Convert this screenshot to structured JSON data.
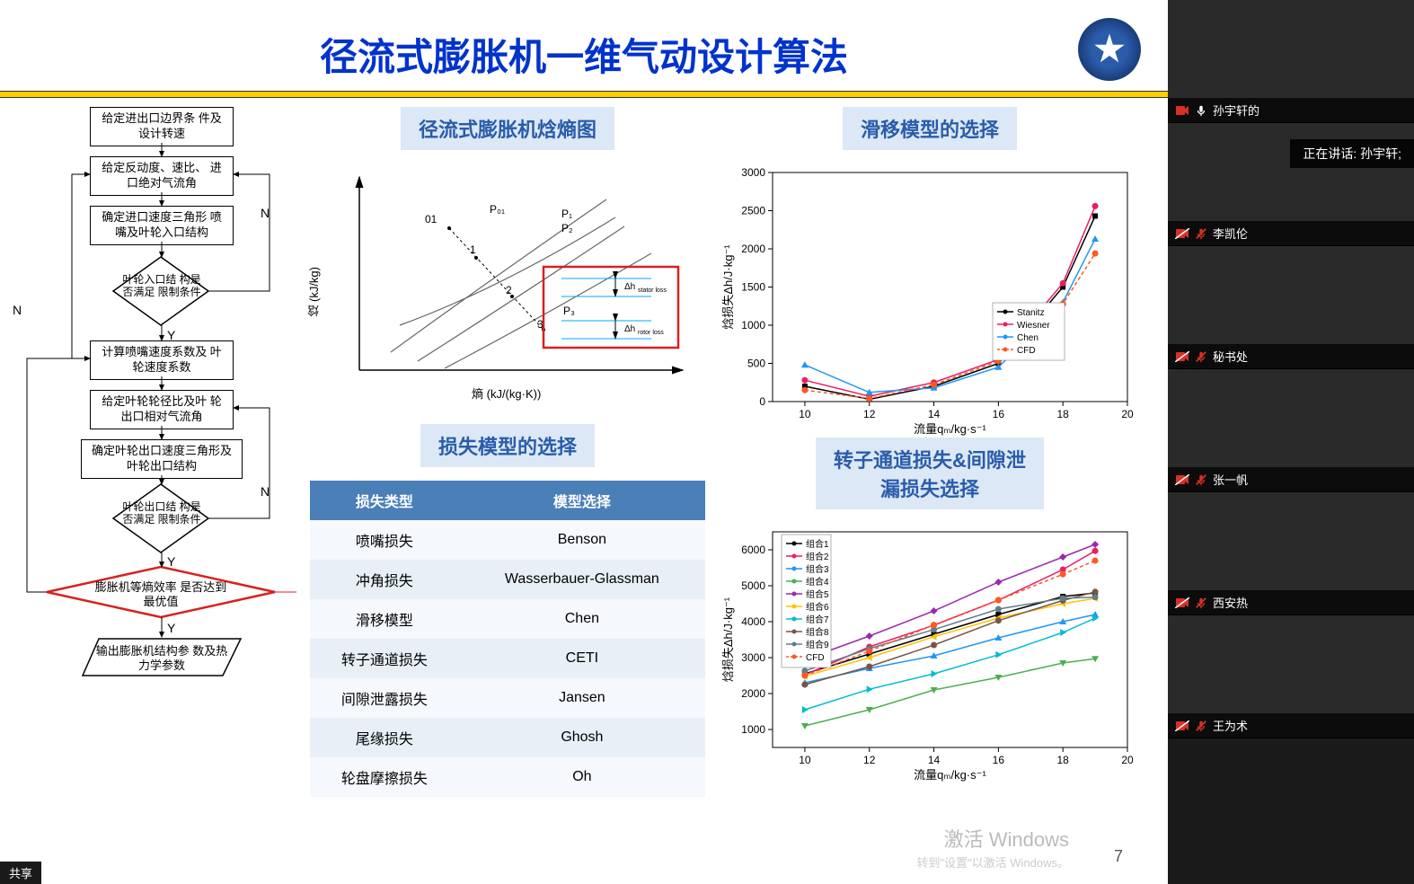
{
  "slide": {
    "title": "径流式膨胀机一维气动设计算法",
    "page_number": "7",
    "title_color": "#0033cc",
    "accent_bar_color": "#ffcc00"
  },
  "flowchart": {
    "box1": "给定进出口边界条\n件及设计转速",
    "box2": "给定反动度、速比、\n进口绝对气流角",
    "box3": "确定进口速度三角形\n喷嘴及叶轮入口结构",
    "diamond1": "叶轮入口结\n构是否满足\n限制条件",
    "box4": "计算喷嘴速度系数及\n叶轮速度系数",
    "box5": "给定叶轮轮径比及叶\n轮出口相对气流角",
    "box6": "确定叶轮出口速度三角形及\n叶轮出口结构",
    "diamond2": "叶轮出口结\n构是否满足\n限制条件",
    "diamond3": "膨胀机等熵效率\n是否达到最优值",
    "para_out": "输出膨胀机结构参\n数及热力学参数",
    "label_y1": "Y",
    "label_n1": "N",
    "label_y2": "Y",
    "label_n2": "N",
    "label_y3": "Y",
    "label_n_left": "N"
  },
  "hs_diagram": {
    "title": "径流式膨胀机焓熵图",
    "ylabel": "焓 (kJ/kg)",
    "xlabel": "熵 (kJ/(kg·K))",
    "p_labels": {
      "p01": "01",
      "P01": "P₀₁",
      "P1": "P₁",
      "P2": "P₂",
      "P3": "P₃",
      "n1": "1",
      "n2": "2",
      "n3": "3"
    },
    "dh_stator": "Δh_stator loss",
    "dh_rotor": "Δh_rotor loss",
    "red_box_color": "#d82020"
  },
  "loss_table": {
    "title": "损失模型的选择",
    "header_loss": "损失类型",
    "header_model": "模型选择",
    "header_bg": "#4a7fb8",
    "row_bg_even": "#e8eff7",
    "row_bg_odd": "#f5f8fc",
    "rows": [
      {
        "loss": "喷嘴损失",
        "model": "Benson"
      },
      {
        "loss": "冲角损失",
        "model": "Wasserbauer-Glassman"
      },
      {
        "loss": "滑移模型",
        "model": "Chen"
      },
      {
        "loss": "转子通道损失",
        "model": "CETI"
      },
      {
        "loss": "间隙泄露损失",
        "model": "Jansen"
      },
      {
        "loss": "尾缘损失",
        "model": "Ghosh"
      },
      {
        "loss": "轮盘摩擦损失",
        "model": "Oh"
      }
    ]
  },
  "chart1": {
    "title": "滑移模型的选择",
    "ylabel": "焓损失Δh/J·kg⁻¹",
    "xlabel": "流量qₘ/kg·s⁻¹",
    "xlim": [
      9,
      20
    ],
    "ylim": [
      0,
      3000
    ],
    "xticks": [
      10,
      12,
      14,
      16,
      18,
      20
    ],
    "yticks": [
      0,
      500,
      1000,
      1500,
      2000,
      2500,
      3000
    ],
    "grid_color": "#e0e0e0",
    "series": [
      {
        "name": "Stanitz",
        "color": "#000000",
        "marker": "square",
        "x": [
          10,
          12,
          14,
          16,
          18,
          19
        ],
        "y": [
          200,
          30,
          200,
          500,
          1500,
          2430
        ]
      },
      {
        "name": "Wiesner",
        "color": "#e91e63",
        "marker": "circle",
        "x": [
          10,
          12,
          14,
          16,
          18,
          19
        ],
        "y": [
          280,
          70,
          250,
          550,
          1550,
          2560
        ]
      },
      {
        "name": "Chen",
        "color": "#2196f3",
        "marker": "triangle",
        "x": [
          10,
          12,
          14,
          16,
          18,
          19
        ],
        "y": [
          480,
          120,
          180,
          450,
          1300,
          2130
        ]
      },
      {
        "name": "CFD",
        "color": "#ff5722",
        "marker": "circle",
        "dash": true,
        "x": [
          10,
          12,
          14,
          16,
          18,
          19
        ],
        "y": [
          150,
          40,
          220,
          530,
          1280,
          1940
        ]
      }
    ]
  },
  "chart2": {
    "title": "转子通道损失&间隙泄\n漏损失选择",
    "ylabel": "焓损失Δh/J·kg⁻¹",
    "xlabel": "流量qₘ/kg·s⁻¹",
    "xlim": [
      9,
      20
    ],
    "ylim": [
      500,
      6500
    ],
    "xticks": [
      10,
      12,
      14,
      16,
      18,
      20
    ],
    "yticks": [
      1000,
      2000,
      3000,
      4000,
      5000,
      6000
    ],
    "grid_color": "#e0e0e0",
    "series": [
      {
        "name": "组合1",
        "color": "#000000",
        "marker": "square",
        "x": [
          10,
          12,
          14,
          16,
          18,
          19
        ],
        "y": [
          2550,
          3100,
          3650,
          4200,
          4700,
          4800
        ]
      },
      {
        "name": "组合2",
        "color": "#e91e63",
        "marker": "circle",
        "x": [
          10,
          12,
          14,
          16,
          18,
          19
        ],
        "y": [
          2520,
          3300,
          3900,
          4600,
          5450,
          5970
        ]
      },
      {
        "name": "组合3",
        "color": "#2196f3",
        "marker": "triangle",
        "x": [
          10,
          12,
          14,
          16,
          18,
          19
        ],
        "y": [
          2300,
          2700,
          3050,
          3550,
          4000,
          4200
        ]
      },
      {
        "name": "组合4",
        "color": "#4caf50",
        "marker": "triangle-down",
        "x": [
          10,
          12,
          14,
          16,
          18,
          19
        ],
        "y": [
          1100,
          1550,
          2100,
          2450,
          2850,
          2970
        ]
      },
      {
        "name": "组合5",
        "color": "#9c27b0",
        "marker": "diamond",
        "x": [
          10,
          12,
          14,
          16,
          18,
          19
        ],
        "y": [
          2950,
          3600,
          4300,
          5100,
          5800,
          6150
        ]
      },
      {
        "name": "组合6",
        "color": "#ffc107",
        "marker": "triangle-left",
        "x": [
          10,
          12,
          14,
          16,
          18,
          19
        ],
        "y": [
          2480,
          3000,
          3580,
          4100,
          4500,
          4650
        ]
      },
      {
        "name": "组合7",
        "color": "#00bcd4",
        "marker": "triangle-right",
        "x": [
          10,
          12,
          14,
          16,
          18,
          19
        ],
        "y": [
          1550,
          2120,
          2550,
          3080,
          3700,
          4100
        ]
      },
      {
        "name": "组合8",
        "color": "#795548",
        "marker": "pentagon",
        "x": [
          10,
          12,
          14,
          16,
          18,
          19
        ],
        "y": [
          2250,
          2750,
          3350,
          4030,
          4590,
          4830
        ]
      },
      {
        "name": "组合9",
        "color": "#607d8b",
        "marker": "star",
        "x": [
          10,
          12,
          14,
          16,
          18,
          19
        ],
        "y": [
          2630,
          3250,
          3780,
          4350,
          4650,
          4680
        ]
      },
      {
        "name": "CFD",
        "color": "#ff5722",
        "marker": "circle",
        "dash": true,
        "x": [
          10,
          12,
          14,
          16,
          18,
          19
        ],
        "y": [
          2500,
          3180,
          3910,
          4600,
          5320,
          5700
        ]
      }
    ]
  },
  "watermark": {
    "main": "激活 Windows",
    "sub": "转到\"设置\"以激活 Windows。"
  },
  "participants": [
    {
      "name": "孙宇轩的",
      "muted": false,
      "cam_off": false
    },
    {
      "name": "李凯伦",
      "muted": true,
      "cam_off": true
    },
    {
      "name": "秘书处",
      "muted": true,
      "cam_off": true
    },
    {
      "name": "张一帆",
      "muted": true,
      "cam_off": true
    },
    {
      "name": "西安热",
      "muted": true,
      "cam_off": true
    },
    {
      "name": "王为术",
      "muted": true,
      "cam_off": true
    }
  ],
  "speaking": {
    "prefix": "正在讲话:",
    "who": "孙宇轩;"
  },
  "bottom_bar": {
    "text": "共享"
  }
}
